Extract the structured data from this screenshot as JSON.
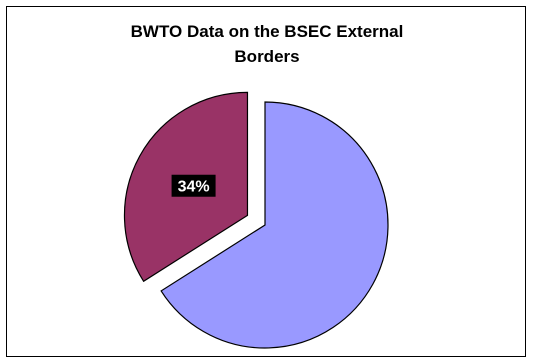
{
  "chart_data": {
    "type": "pie",
    "title_lines": [
      "BWTO Data on the BSEC External",
      "Borders"
    ],
    "slices": [
      {
        "value": 66,
        "color": "#9999ff",
        "label": "",
        "exploded": false
      },
      {
        "value": 34,
        "color": "#993366",
        "label": "34%",
        "exploded": true
      }
    ],
    "legend": "none"
  }
}
